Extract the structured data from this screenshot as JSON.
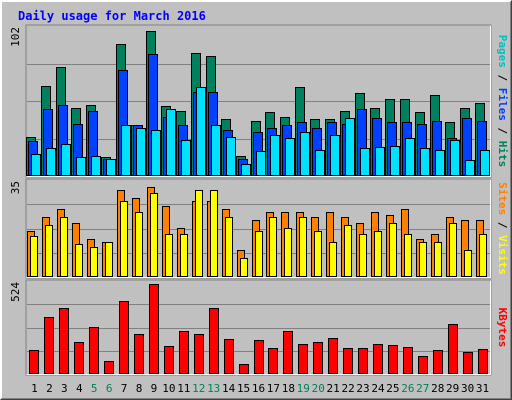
{
  "chart_data": {
    "type": "bar",
    "title": "Daily usage for March 2016",
    "x": [
      "1",
      "2",
      "3",
      "4",
      "5",
      "6",
      "7",
      "8",
      "9",
      "10",
      "11",
      "12",
      "13",
      "14",
      "15",
      "16",
      "17",
      "18",
      "19",
      "20",
      "21",
      "22",
      "23",
      "24",
      "25",
      "26",
      "27",
      "28",
      "29",
      "30",
      "31"
    ],
    "weekend_days": [
      5,
      6,
      12,
      13,
      19,
      20,
      26,
      27
    ],
    "panels": [
      {
        "name": "top",
        "max_label": "102",
        "ymax": 102,
        "series": [
          {
            "name": "Hits",
            "color": "#00805c",
            "values": [
              27,
              62,
              75,
              47,
              49,
              13,
              91,
              35,
              100,
              48,
              45,
              85,
              83,
              39,
              14,
              38,
              44,
              41,
              61,
              39,
              39,
              45,
              57,
              47,
              53,
              53,
              44,
              56,
              37,
              47,
              50
            ]
          },
          {
            "name": "Files",
            "color": "#0040ff",
            "values": [
              24,
              46,
              49,
              36,
              45,
              12,
              73,
              35,
              84,
              41,
              35,
              58,
              58,
              32,
              12,
              30,
              33,
              35,
              37,
              33,
              37,
              36,
              46,
              40,
              37,
              37,
              36,
              38,
              26,
              40,
              38
            ]
          },
          {
            "name": "Pages",
            "color": "#00e0ff",
            "values": [
              15,
              19,
              22,
              13,
              14,
              12,
              35,
              33,
              32,
              46,
              25,
              61,
              35,
              27,
              8,
              17,
              28,
              26,
              30,
              18,
              28,
              40,
              19,
              20,
              21,
              26,
              19,
              18,
              25,
              11,
              18
            ]
          }
        ],
        "side_label": [
          {
            "text": "Pages",
            "color": "#00bfbf"
          },
          {
            "text": " / ",
            "color": "#000000"
          },
          {
            "text": "Files",
            "color": "#0040ff"
          },
          {
            "text": " / ",
            "color": "#000000"
          },
          {
            "text": "Hits",
            "color": "#00805c"
          }
        ]
      },
      {
        "name": "middle",
        "max_label": "35",
        "ymax": 35,
        "series": [
          {
            "name": "Sites",
            "color": "#ff8000",
            "values": [
              17,
              22,
              25,
              20,
              14,
              13,
              32,
              29,
              33,
              26,
              18,
              28,
              28,
              25,
              10,
              21,
              24,
              24,
              24,
              22,
              24,
              22,
              20,
              24,
              23,
              25,
              14,
              16,
              22,
              21,
              21
            ]
          },
          {
            "name": "Visits",
            "color": "#ffff00",
            "values": [
              15,
              19,
              22,
              12,
              11,
              13,
              28,
              24,
              31,
              16,
              16,
              32,
              32,
              22,
              7,
              17,
              22,
              18,
              22,
              17,
              13,
              19,
              16,
              17,
              20,
              16,
              13,
              13,
              20,
              10,
              16
            ]
          }
        ],
        "side_label": [
          {
            "text": "Sites",
            "color": "#ff8000"
          },
          {
            "text": " / ",
            "color": "#000000"
          },
          {
            "text": "Visits",
            "color": "#ffff00"
          }
        ]
      },
      {
        "name": "bottom",
        "max_label": "524",
        "ymax": 524,
        "series": [
          {
            "name": "KBytes",
            "color": "#ff0000",
            "values": [
              140,
              327,
              380,
              183,
              270,
              75,
              418,
              228,
              519,
              164,
              247,
              228,
              378,
              200,
              60,
              195,
              151,
              248,
              171,
              184,
              208,
              148,
              152,
              174,
              166,
              157,
              103,
              141,
              290,
              129,
              144
            ]
          }
        ],
        "side_label": [
          {
            "text": "KBytes",
            "color": "#ff0000"
          }
        ]
      }
    ]
  }
}
